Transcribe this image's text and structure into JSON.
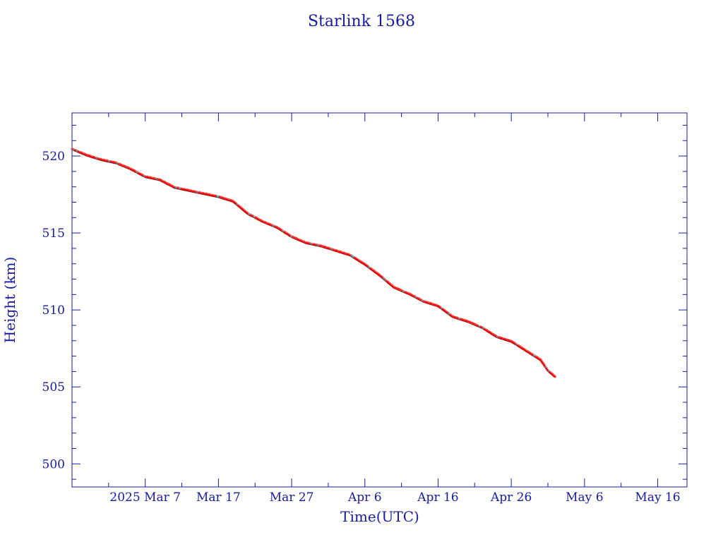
{
  "chart_data": {
    "type": "scatter",
    "title": "Starlink 1568",
    "xlabel": "Time(UTC)",
    "ylabel": "Height (km)",
    "x_type": "date",
    "xlim": [
      "2025-02-25",
      "2025-05-20"
    ],
    "ylim": [
      498.5,
      522.8
    ],
    "xticks": [
      {
        "date": "2025-03-07",
        "label": "2025 Mar  7"
      },
      {
        "date": "2025-03-17",
        "label": "Mar 17"
      },
      {
        "date": "2025-03-27",
        "label": "Mar 27"
      },
      {
        "date": "2025-04-06",
        "label": "Apr  6"
      },
      {
        "date": "2025-04-16",
        "label": "Apr 16"
      },
      {
        "date": "2025-04-26",
        "label": "Apr 26"
      },
      {
        "date": "2025-05-06",
        "label": "May  6"
      },
      {
        "date": "2025-05-16",
        "label": "May 16"
      }
    ],
    "yticks": [
      500,
      505,
      510,
      515,
      520
    ],
    "grid": false,
    "colors": {
      "axis": "#1a1a9c",
      "line": "#000000",
      "points": "#ff0000",
      "highlight": "#00e5e5"
    },
    "series": [
      {
        "style": "line-with-markers",
        "x": [
          "2025-02-25",
          "2025-02-27",
          "2025-03-01",
          "2025-03-03",
          "2025-03-05",
          "2025-03-07",
          "2025-03-09",
          "2025-03-11",
          "2025-03-13",
          "2025-03-15",
          "2025-03-17",
          "2025-03-19",
          "2025-03-21",
          "2025-03-23",
          "2025-03-25",
          "2025-03-27",
          "2025-03-29",
          "2025-03-31",
          "2025-04-02",
          "2025-04-04",
          "2025-04-06",
          "2025-04-08",
          "2025-04-10",
          "2025-04-12",
          "2025-04-14",
          "2025-04-16",
          "2025-04-18",
          "2025-04-20",
          "2025-04-22",
          "2025-04-24",
          "2025-04-26",
          "2025-04-28",
          "2025-04-30",
          "2025-05-01",
          "2025-05-02"
        ],
        "y": [
          520.4,
          520.0,
          519.7,
          519.5,
          519.1,
          518.6,
          518.4,
          517.9,
          517.7,
          517.5,
          517.3,
          517.0,
          516.2,
          515.7,
          515.3,
          514.7,
          514.3,
          514.1,
          513.8,
          513.5,
          512.9,
          512.2,
          511.4,
          511.0,
          510.5,
          510.2,
          509.5,
          509.2,
          508.8,
          508.2,
          507.9,
          507.3,
          506.7,
          506.0,
          505.6
        ]
      }
    ]
  }
}
